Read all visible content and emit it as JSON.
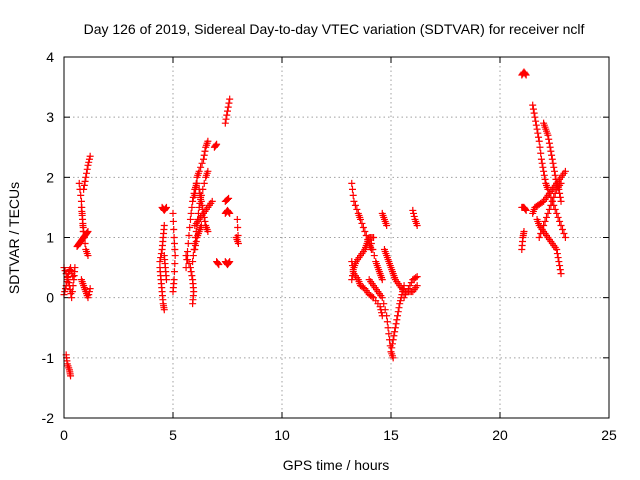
{
  "chart_data": {
    "type": "scatter",
    "title": "Day 126 of 2019, Sidereal Day-to-day VTEC variation (SDTVAR) for receiver nclf",
    "xlabel": "GPS time / hours",
    "ylabel": "SDTVAR / TECUs",
    "xlim": [
      0,
      25
    ],
    "ylim": [
      -2,
      4
    ],
    "xticks": [
      "0",
      "5",
      "10",
      "15",
      "20",
      "25"
    ],
    "yticks": [
      "-2",
      "-1",
      "0",
      "1",
      "2",
      "3",
      "4"
    ],
    "xtick_values": [
      0,
      5,
      10,
      15,
      20,
      25
    ],
    "ytick_values": [
      -2,
      -1,
      0,
      1,
      2,
      3,
      4
    ],
    "grid": true,
    "marker": "+",
    "color": "#ff0000",
    "series": [
      {
        "name": "SDTVAR",
        "segments": [
          [
            [
              0.0,
              0.5
            ],
            [
              0.15,
              0.35
            ],
            [
              0.25,
              0.2
            ],
            [
              0.35,
              0.0
            ],
            [
              0.45,
              0.3
            ],
            [
              0.5,
              0.5
            ]
          ],
          [
            [
              0.0,
              0.05
            ],
            [
              0.1,
              0.2
            ],
            [
              0.2,
              0.4
            ],
            [
              0.3,
              0.5
            ],
            [
              0.4,
              0.35
            ]
          ],
          [
            [
              0.1,
              -0.95
            ],
            [
              0.15,
              -1.1
            ],
            [
              0.25,
              -1.2
            ],
            [
              0.3,
              -1.3
            ]
          ],
          [
            [
              0.6,
              0.85
            ],
            [
              0.7,
              0.9
            ],
            [
              0.8,
              0.95
            ],
            [
              0.9,
              1.0
            ],
            [
              1.0,
              1.05
            ],
            [
              1.1,
              1.1
            ]
          ],
          [
            [
              0.7,
              1.9
            ],
            [
              0.8,
              1.6
            ],
            [
              0.85,
              1.3
            ],
            [
              0.9,
              1.0
            ]
          ],
          [
            [
              0.8,
              1.5
            ],
            [
              0.85,
              1.3
            ],
            [
              0.9,
              1.1
            ],
            [
              1.0,
              0.8
            ],
            [
              1.1,
              0.7
            ]
          ],
          [
            [
              0.9,
              1.8
            ],
            [
              1.0,
              2.0
            ],
            [
              1.1,
              2.2
            ],
            [
              1.2,
              2.35
            ]
          ],
          [
            [
              0.8,
              0.3
            ],
            [
              0.9,
              0.2
            ],
            [
              1.0,
              0.1
            ],
            [
              1.1,
              0.0
            ],
            [
              1.2,
              0.15
            ]
          ],
          [
            [
              4.5,
              1.5
            ],
            [
              4.6,
              1.45
            ],
            [
              4.7,
              1.5
            ]
          ],
          [
            [
              4.4,
              0.6
            ],
            [
              4.5,
              0.8
            ],
            [
              4.55,
              1.0
            ],
            [
              4.6,
              1.2
            ]
          ],
          [
            [
              4.4,
              0.5
            ],
            [
              4.45,
              0.3
            ],
            [
              4.5,
              0.1
            ],
            [
              4.55,
              -0.1
            ],
            [
              4.6,
              -0.2
            ]
          ],
          [
            [
              4.6,
              0.7
            ],
            [
              4.65,
              0.5
            ],
            [
              4.7,
              0.3
            ]
          ],
          [
            [
              5.0,
              1.4
            ],
            [
              5.05,
              1.0
            ],
            [
              5.1,
              0.7
            ],
            [
              5.05,
              0.3
            ],
            [
              5.0,
              0.1
            ]
          ],
          [
            [
              5.6,
              0.7
            ],
            [
              5.8,
              0.5
            ],
            [
              5.9,
              0.3
            ],
            [
              5.95,
              0.1
            ],
            [
              5.9,
              -0.1
            ]
          ],
          [
            [
              5.6,
              0.5
            ],
            [
              5.7,
              0.9
            ],
            [
              5.8,
              1.3
            ],
            [
              5.9,
              1.6
            ],
            [
              6.0,
              1.8
            ],
            [
              6.1,
              1.9
            ]
          ],
          [
            [
              5.9,
              0.6
            ],
            [
              6.0,
              0.9
            ],
            [
              6.1,
              1.2
            ],
            [
              6.2,
              1.5
            ],
            [
              6.3,
              1.7
            ],
            [
              6.5,
              2.0
            ],
            [
              6.6,
              2.1
            ]
          ],
          [
            [
              6.0,
              1.7
            ],
            [
              6.1,
              2.0
            ],
            [
              6.2,
              2.1
            ],
            [
              6.4,
              2.3
            ],
            [
              6.5,
              2.5
            ],
            [
              6.6,
              2.6
            ]
          ],
          [
            [
              6.0,
              1.2
            ],
            [
              6.2,
              1.3
            ],
            [
              6.4,
              1.4
            ],
            [
              6.6,
              1.5
            ],
            [
              6.8,
              1.6
            ]
          ],
          [
            [
              6.2,
              1.8
            ],
            [
              6.3,
              1.6
            ],
            [
              6.4,
              1.4
            ],
            [
              6.5,
              1.2
            ],
            [
              6.6,
              1.1
            ]
          ],
          [
            [
              6.0,
              0.8
            ],
            [
              6.1,
              1.0
            ],
            [
              6.2,
              1.1
            ],
            [
              6.3,
              1.2
            ]
          ],
          [
            [
              6.9,
              2.5
            ],
            [
              7.0,
              2.55
            ]
          ],
          [
            [
              7.0,
              0.6
            ],
            [
              7.1,
              0.55
            ]
          ],
          [
            [
              7.4,
              0.6
            ],
            [
              7.5,
              0.55
            ],
            [
              7.6,
              0.6
            ]
          ],
          [
            [
              7.4,
              1.4
            ],
            [
              7.5,
              1.45
            ],
            [
              7.6,
              1.4
            ]
          ],
          [
            [
              7.4,
              1.6
            ],
            [
              7.55,
              1.65
            ]
          ],
          [
            [
              7.4,
              2.9
            ],
            [
              7.5,
              3.1
            ],
            [
              7.6,
              3.3
            ]
          ],
          [
            [
              7.9,
              1.0
            ],
            [
              8.0,
              0.9
            ],
            [
              7.95,
              1.3
            ]
          ],
          [
            [
              13.2,
              1.9
            ],
            [
              13.3,
              1.6
            ],
            [
              13.5,
              1.4
            ],
            [
              13.6,
              1.3
            ],
            [
              13.8,
              1.1
            ],
            [
              14.0,
              0.9
            ],
            [
              14.1,
              0.8
            ]
          ],
          [
            [
              13.2,
              0.3
            ],
            [
              13.3,
              0.5
            ],
            [
              13.4,
              0.6
            ],
            [
              13.6,
              0.7
            ],
            [
              13.8,
              0.8
            ],
            [
              13.9,
              0.9
            ],
            [
              14.0,
              1.0
            ],
            [
              14.2,
              1.0
            ]
          ],
          [
            [
              13.2,
              0.6
            ],
            [
              13.3,
              0.4
            ],
            [
              13.5,
              0.3
            ],
            [
              13.6,
              0.2
            ],
            [
              13.8,
              0.15
            ],
            [
              14.0,
              0.05
            ],
            [
              14.2,
              0.0
            ],
            [
              14.5,
              -0.15
            ],
            [
              14.6,
              -0.3
            ]
          ],
          [
            [
              14.1,
              0.9
            ],
            [
              14.3,
              0.6
            ],
            [
              14.4,
              0.5
            ],
            [
              14.5,
              0.4
            ],
            [
              14.6,
              0.3
            ]
          ],
          [
            [
              14.0,
              0.3
            ],
            [
              14.2,
              0.2
            ],
            [
              14.4,
              0.1
            ],
            [
              14.6,
              0.0
            ],
            [
              14.8,
              -0.3
            ],
            [
              14.9,
              -0.6
            ],
            [
              15.0,
              -0.9
            ],
            [
              15.1,
              -1.0
            ]
          ],
          [
            [
              14.6,
              1.4
            ],
            [
              14.7,
              1.3
            ],
            [
              14.8,
              1.2
            ]
          ],
          [
            [
              14.7,
              0.8
            ],
            [
              14.8,
              0.7
            ],
            [
              14.9,
              0.6
            ],
            [
              15.0,
              0.5
            ],
            [
              15.1,
              0.4
            ],
            [
              15.2,
              0.3
            ],
            [
              15.4,
              0.2
            ],
            [
              15.6,
              0.1
            ],
            [
              15.8,
              0.1
            ],
            [
              16.0,
              0.1
            ],
            [
              16.2,
              0.2
            ]
          ],
          [
            [
              15.0,
              -0.9
            ],
            [
              15.1,
              -0.7
            ],
            [
              15.2,
              -0.5
            ],
            [
              15.3,
              -0.3
            ],
            [
              15.4,
              -0.1
            ],
            [
              15.5,
              0.05
            ],
            [
              15.6,
              0.2
            ]
          ],
          [
            [
              15.6,
              0.0
            ],
            [
              15.8,
              0.15
            ],
            [
              16.0,
              0.3
            ],
            [
              16.2,
              0.35
            ]
          ],
          [
            [
              16.0,
              1.45
            ],
            [
              16.1,
              1.3
            ],
            [
              16.2,
              1.2
            ]
          ],
          [
            [
              21.0,
              1.5
            ],
            [
              21.1,
              1.5
            ],
            [
              21.2,
              1.45
            ]
          ],
          [
            [
              21.0,
              0.8
            ],
            [
              21.05,
              1.0
            ],
            [
              21.1,
              1.1
            ]
          ],
          [
            [
              21.0,
              3.7
            ],
            [
              21.1,
              3.75
            ],
            [
              21.2,
              3.7
            ]
          ],
          [
            [
              21.5,
              3.2
            ],
            [
              21.6,
              3.0
            ],
            [
              21.7,
              2.8
            ],
            [
              21.8,
              2.6
            ],
            [
              21.9,
              2.3
            ],
            [
              22.0,
              2.1
            ],
            [
              22.1,
              1.9
            ],
            [
              22.2,
              1.8
            ],
            [
              22.4,
              1.6
            ],
            [
              22.6,
              1.4
            ],
            [
              22.8,
              1.2
            ],
            [
              23.0,
              1.0
            ]
          ],
          [
            [
              21.5,
              1.4
            ],
            [
              21.6,
              1.5
            ],
            [
              21.8,
              1.55
            ],
            [
              22.0,
              1.6
            ],
            [
              22.2,
              1.7
            ],
            [
              22.4,
              1.8
            ],
            [
              22.6,
              1.9
            ],
            [
              22.8,
              2.0
            ],
            [
              23.0,
              2.1
            ]
          ],
          [
            [
              21.7,
              1.3
            ],
            [
              21.8,
              1.2
            ],
            [
              22.0,
              1.1
            ],
            [
              22.2,
              1.0
            ],
            [
              22.4,
              0.9
            ],
            [
              22.6,
              0.8
            ],
            [
              22.7,
              0.6
            ],
            [
              22.8,
              0.4
            ]
          ],
          [
            [
              22.0,
              2.9
            ],
            [
              22.1,
              2.8
            ],
            [
              22.2,
              2.7
            ],
            [
              22.3,
              2.5
            ],
            [
              22.4,
              2.3
            ],
            [
              22.5,
              2.1
            ],
            [
              22.6,
              1.9
            ],
            [
              22.7,
              1.8
            ],
            [
              22.8,
              1.6
            ]
          ],
          [
            [
              21.8,
              1.0
            ],
            [
              22.0,
              1.2
            ],
            [
              22.2,
              1.4
            ],
            [
              22.4,
              1.6
            ],
            [
              22.6,
              1.8
            ],
            [
              22.8,
              1.9
            ]
          ]
        ]
      }
    ]
  }
}
